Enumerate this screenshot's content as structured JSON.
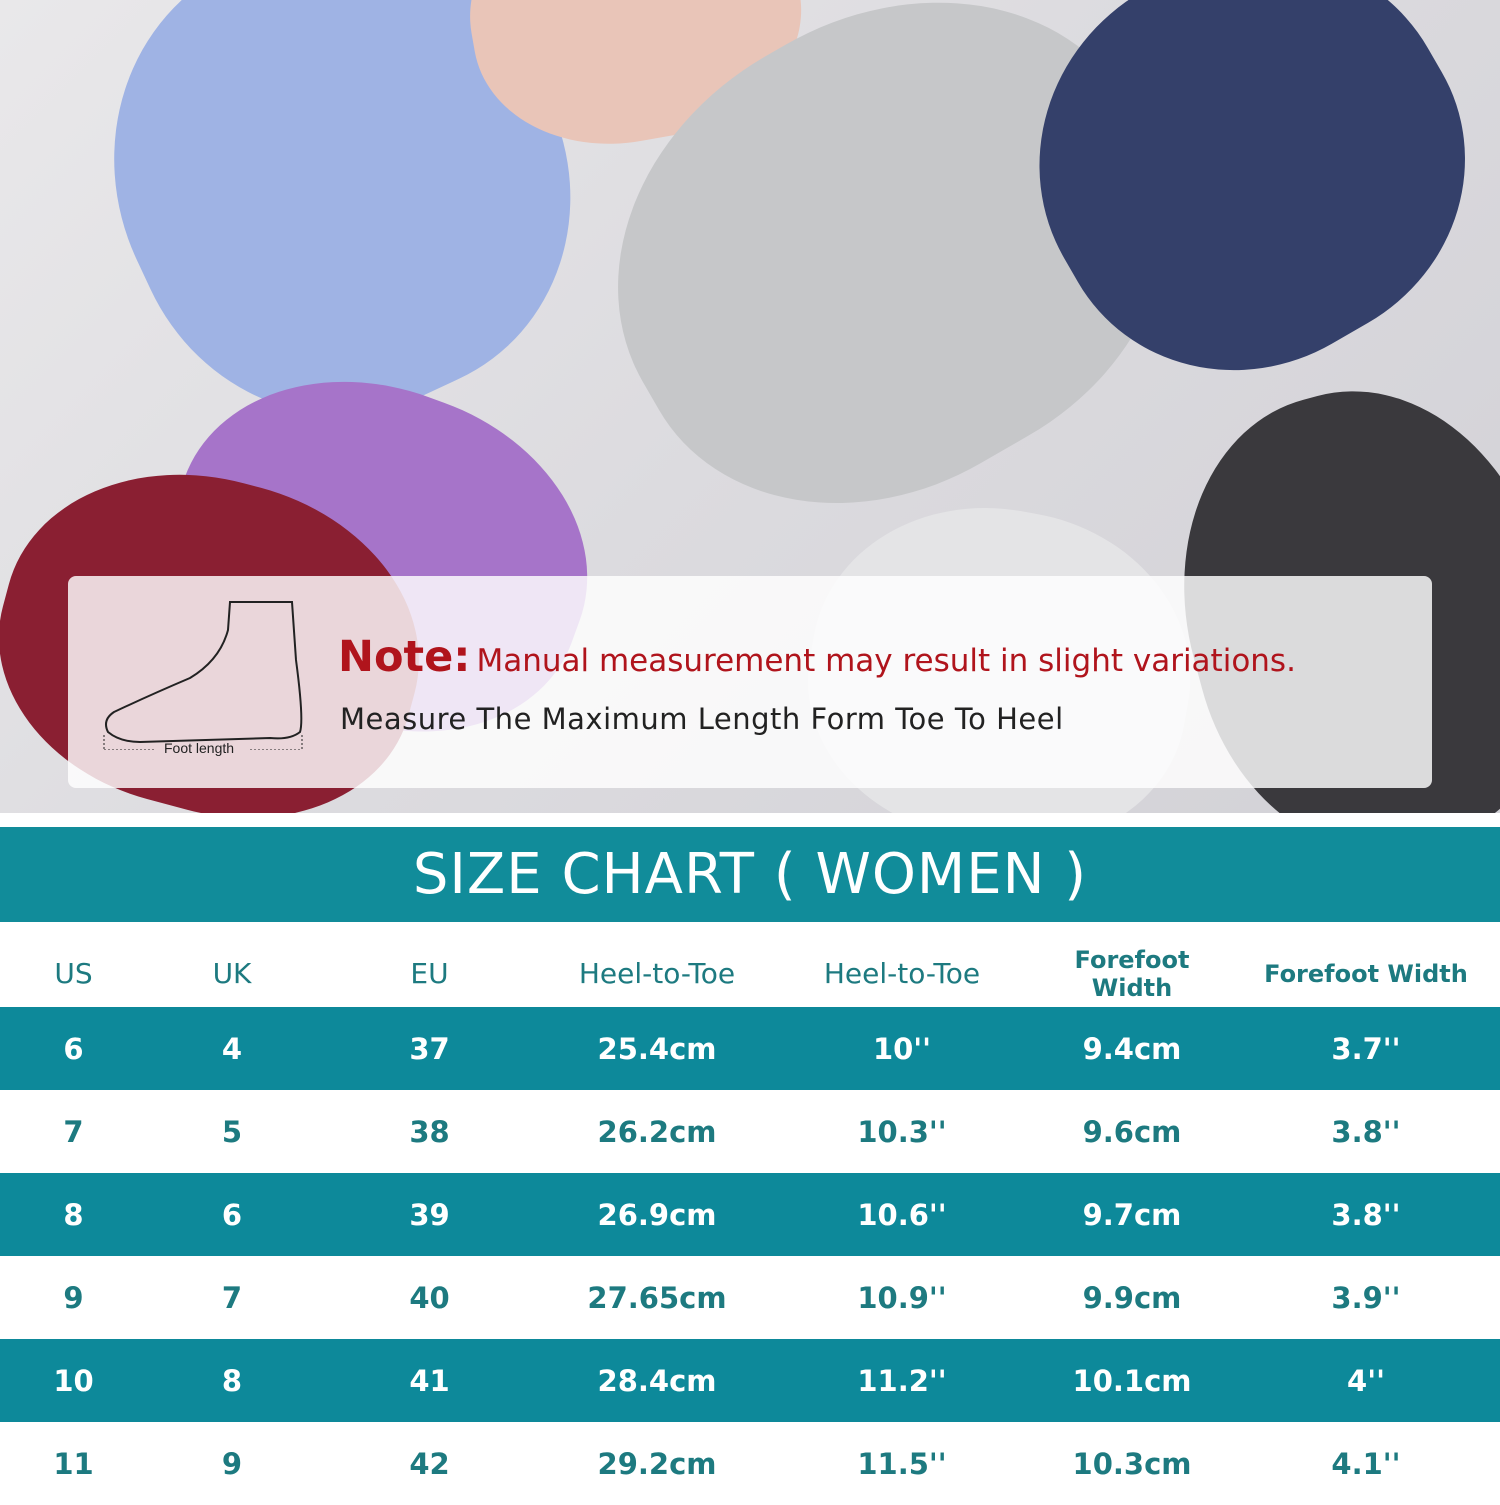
{
  "note": {
    "label": "Note:",
    "text": "Manual measurement may result in slight variations.",
    "instruction": "Measure The Maximum Length Form Toe To Heel",
    "diagram_label": "Foot length"
  },
  "title": "SIZE CHART ( WOMEN )",
  "colors": {
    "teal": "#0d899a",
    "red": "#b0141c",
    "header_text": "#1d7a80"
  },
  "table": {
    "headers": [
      "US",
      "UK",
      "EU",
      "Heel-to-Toe",
      "Heel-to-Toe",
      "Forefoot Width",
      "Forefoot Width"
    ],
    "rows": [
      [
        "6",
        "4",
        "37",
        "25.4cm",
        "10''",
        "9.4cm",
        "3.7''"
      ],
      [
        "7",
        "5",
        "38",
        "26.2cm",
        "10.3''",
        "9.6cm",
        "3.8''"
      ],
      [
        "8",
        "6",
        "39",
        "26.9cm",
        "10.6''",
        "9.7cm",
        "3.8''"
      ],
      [
        "9",
        "7",
        "40",
        "27.65cm",
        "10.9''",
        "9.9cm",
        "3.9''"
      ],
      [
        "10",
        "8",
        "41",
        "28.4cm",
        "11.2''",
        "10.1cm",
        "4''"
      ],
      [
        "11",
        "9",
        "42",
        "29.2cm",
        "11.5''",
        "10.3cm",
        "4.1''"
      ]
    ]
  }
}
